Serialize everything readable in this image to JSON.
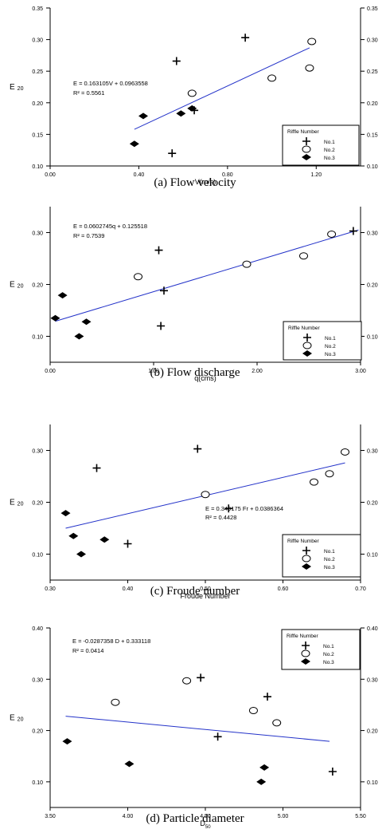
{
  "chart_data": [
    {
      "type": "scatter",
      "caption": "(a) Flow velocity",
      "xlabel": "V(m/s)",
      "ylabel": "E",
      "ylabel_sub": "20",
      "xlim": [
        0,
        1.4
      ],
      "ylim": [
        0.1,
        0.35
      ],
      "xticks": [
        "0.00",
        "0.40",
        "0.80",
        "1.20"
      ],
      "xtick_values": [
        0,
        0.4,
        0.8,
        1.2
      ],
      "yticks": [
        "0.10",
        "0.15",
        "0.20",
        "0.25",
        "0.30",
        "0.35"
      ],
      "ytick_values": [
        0.1,
        0.15,
        0.2,
        0.25,
        0.3,
        0.35
      ],
      "equation": "E = 0.163105V + 0.0963558",
      "r2": "R² = 0.5561",
      "fit": {
        "x": [
          0.38,
          1.17
        ],
        "y": [
          0.158,
          0.287
        ]
      },
      "legend_title": "Riffle Number",
      "series": [
        {
          "name": "No.1",
          "marker": "plus",
          "points": [
            [
              0.55,
              0.12
            ],
            [
              0.57,
              0.266
            ],
            [
              0.65,
              0.188
            ],
            [
              0.88,
              0.303
            ]
          ]
        },
        {
          "name": "No.2",
          "marker": "circle",
          "points": [
            [
              0.64,
              0.215
            ],
            [
              1.0,
              0.239
            ],
            [
              1.17,
              0.255
            ],
            [
              1.18,
              0.297
            ]
          ]
        },
        {
          "name": "No.3",
          "marker": "diamond",
          "points": [
            [
              0.38,
              0.135
            ],
            [
              0.42,
              0.179
            ],
            [
              0.59,
              0.183
            ],
            [
              0.64,
              0.191
            ]
          ]
        }
      ]
    },
    {
      "type": "scatter",
      "caption": "(b) Flow discharge",
      "xlabel": "q(cms)",
      "ylabel": "E",
      "ylabel_sub": "20",
      "xlim": [
        0,
        3
      ],
      "ylim": [
        0.05,
        0.35
      ],
      "xticks": [
        "0.00",
        "1.00",
        "2.00",
        "3.00"
      ],
      "xtick_values": [
        0,
        1,
        2,
        3
      ],
      "yticks": [
        "0.10",
        "0.20",
        "0.30"
      ],
      "ytick_values": [
        0.1,
        0.2,
        0.3
      ],
      "equation": "E = 0.0602745q + 0.125518",
      "r2": "R² = 0.7539",
      "fit": {
        "x": [
          0.05,
          2.98
        ],
        "y": [
          0.129,
          0.305
        ]
      },
      "legend_title": "Riffle Number",
      "series": [
        {
          "name": "No.1",
          "marker": "plus",
          "points": [
            [
              1.07,
              0.12
            ],
            [
              1.1,
              0.188
            ],
            [
              1.05,
              0.266
            ],
            [
              2.93,
              0.303
            ]
          ]
        },
        {
          "name": "No.2",
          "marker": "circle",
          "points": [
            [
              0.85,
              0.215
            ],
            [
              1.9,
              0.239
            ],
            [
              2.45,
              0.255
            ],
            [
              2.72,
              0.297
            ]
          ]
        },
        {
          "name": "No.3",
          "marker": "diamond",
          "points": [
            [
              0.05,
              0.135
            ],
            [
              0.12,
              0.179
            ],
            [
              0.35,
              0.128
            ],
            [
              0.28,
              0.1
            ]
          ]
        }
      ]
    },
    {
      "type": "scatter",
      "caption": "(c) Froude number",
      "xlabel": "Froude Number",
      "ylabel": "E",
      "ylabel_sub": "20",
      "xlim": [
        0.3,
        0.7
      ],
      "ylim": [
        0.05,
        0.35
      ],
      "xticks": [
        "0.30",
        "0.40",
        "0.50",
        "0.60",
        "0.70"
      ],
      "xtick_values": [
        0.3,
        0.4,
        0.5,
        0.6,
        0.7
      ],
      "yticks": [
        "0.10",
        "0.20",
        "0.30"
      ],
      "ytick_values": [
        0.1,
        0.2,
        0.3
      ],
      "equation": "E = 0.349175 Fr + 0.0386364",
      "r2": "R² = 0.4428",
      "fit": {
        "x": [
          0.32,
          0.68
        ],
        "y": [
          0.15,
          0.276
        ]
      },
      "legend_title": "Riffle Number",
      "series": [
        {
          "name": "No.1",
          "marker": "plus",
          "points": [
            [
              0.36,
              0.266
            ],
            [
              0.4,
              0.12
            ],
            [
              0.49,
              0.303
            ],
            [
              0.53,
              0.188
            ]
          ]
        },
        {
          "name": "No.2",
          "marker": "circle",
          "points": [
            [
              0.5,
              0.215
            ],
            [
              0.64,
              0.239
            ],
            [
              0.66,
              0.255
            ],
            [
              0.68,
              0.297
            ]
          ]
        },
        {
          "name": "No.3",
          "marker": "diamond",
          "points": [
            [
              0.32,
              0.179
            ],
            [
              0.33,
              0.135
            ],
            [
              0.34,
              0.1
            ],
            [
              0.37,
              0.128
            ]
          ]
        }
      ]
    },
    {
      "type": "scatter",
      "caption": "(d) Particle diameter",
      "xlabel": "D",
      "xlabel_sub": "50",
      "ylabel": "E",
      "ylabel_sub": "20",
      "xlim": [
        3.5,
        5.5
      ],
      "ylim": [
        0.05,
        0.4
      ],
      "xticks": [
        "3.50",
        "4.00",
        "4.50",
        "5.00",
        "5.50"
      ],
      "xtick_values": [
        3.5,
        4.0,
        4.5,
        5.0,
        5.5
      ],
      "yticks": [
        "0.10",
        "0.20",
        "0.30",
        "0.40"
      ],
      "ytick_values": [
        0.1,
        0.2,
        0.3,
        0.4
      ],
      "equation": "E = -0.0287358 D + 0.333118",
      "r2": "R² = 0.0414",
      "fit": {
        "x": [
          3.6,
          5.3
        ],
        "y": [
          0.228,
          0.179
        ]
      },
      "legend_title": "Riffle Number",
      "series": [
        {
          "name": "No.1",
          "marker": "plus",
          "points": [
            [
              4.47,
              0.303
            ],
            [
              4.58,
              0.188
            ],
            [
              4.9,
              0.266
            ],
            [
              5.32,
              0.12
            ]
          ]
        },
        {
          "name": "No.2",
          "marker": "circle",
          "points": [
            [
              3.92,
              0.255
            ],
            [
              4.38,
              0.297
            ],
            [
              4.81,
              0.239
            ],
            [
              4.96,
              0.215
            ]
          ]
        },
        {
          "name": "No.3",
          "marker": "diamond",
          "points": [
            [
              3.61,
              0.179
            ],
            [
              4.01,
              0.135
            ],
            [
              4.86,
              0.1
            ],
            [
              4.88,
              0.128
            ]
          ]
        }
      ]
    }
  ]
}
